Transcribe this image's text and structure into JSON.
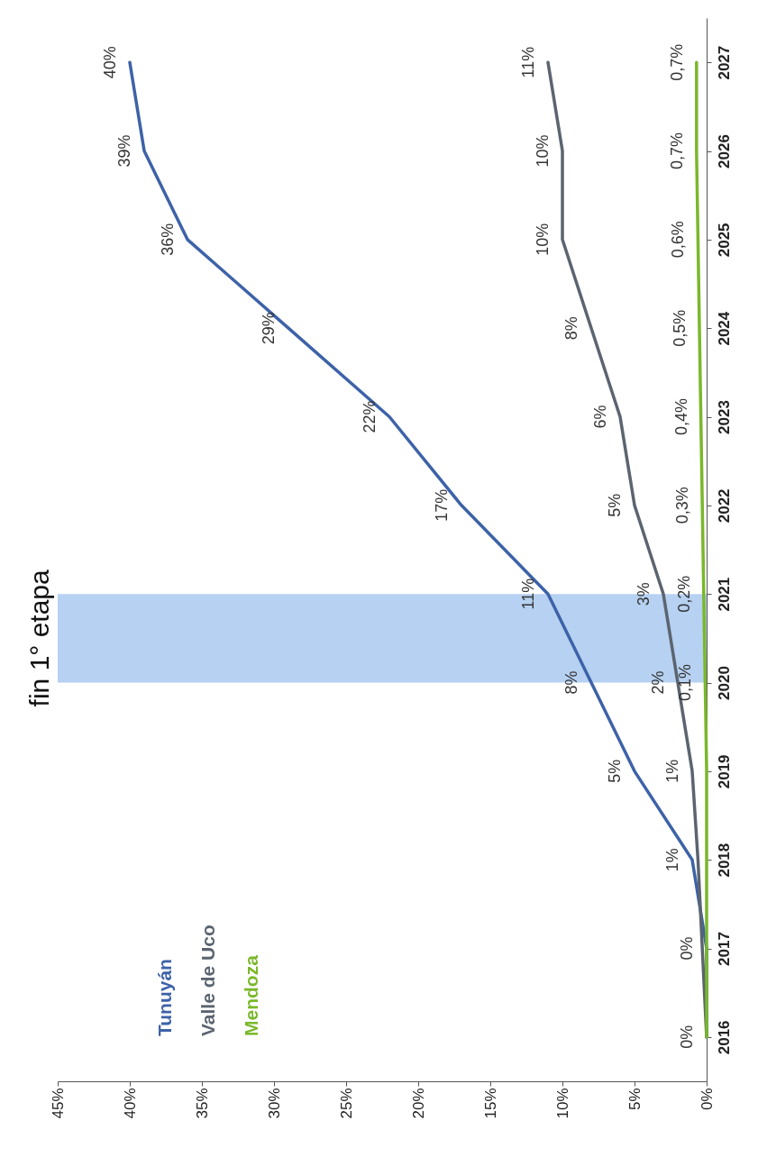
{
  "chart_data": {
    "type": "line",
    "orientation": "horizontal",
    "categories": [
      "2027",
      "2026",
      "2025",
      "2024",
      "2023",
      "2022",
      "2021",
      "2020",
      "2019",
      "2018",
      "2017",
      "2016"
    ],
    "xlim": [
      45,
      0
    ],
    "xticks": [
      {
        "value": 0,
        "label": "0%"
      },
      {
        "value": 5,
        "label": "5%"
      },
      {
        "value": 10,
        "label": "10%"
      },
      {
        "value": 15,
        "label": "15%"
      },
      {
        "value": 20,
        "label": "20%"
      },
      {
        "value": 25,
        "label": "25%"
      },
      {
        "value": 30,
        "label": "30%"
      },
      {
        "value": 35,
        "label": "35%"
      },
      {
        "value": 40,
        "label": "40%"
      },
      {
        "value": 45,
        "label": "45%"
      }
    ],
    "series": [
      {
        "name": "Tunuyán",
        "color": "#3d62a8",
        "values": [
          40,
          39,
          36,
          29,
          22,
          17,
          11,
          8,
          5,
          1,
          0,
          0
        ],
        "value_labels": [
          "40%",
          "39%",
          "36%",
          "29%",
          "22%",
          "17%",
          "11%",
          "8%",
          "5%",
          "1%",
          "0%",
          null
        ]
      },
      {
        "name": "Valle de Uco",
        "color": "#5b6470",
        "values": [
          11,
          10,
          10,
          8,
          6,
          5,
          3,
          2,
          1,
          0.6,
          0.3,
          0
        ],
        "value_labels": [
          "11%",
          "10%",
          "10%",
          "8%",
          "6%",
          "5%",
          "3%",
          "2%",
          "1%",
          null,
          null,
          "0%"
        ]
      },
      {
        "name": "Mendoza",
        "color": "#7ab82a",
        "values": [
          0.7,
          0.7,
          0.6,
          0.5,
          0.4,
          0.3,
          0.2,
          0.1,
          0,
          0,
          0,
          0
        ],
        "value_labels": [
          "0,7%",
          "0,7%",
          "0,6%",
          "0,5%",
          "0,4%",
          "0,3%",
          "0,2%",
          "0,1%",
          null,
          null,
          null,
          null
        ]
      }
    ],
    "bands": [
      {
        "axis": "y",
        "from": "2021",
        "to": "2020",
        "label": "fin 1° etapa",
        "color": "#a9c9ee"
      }
    ],
    "legend": "bottom left",
    "grid": false,
    "marker": "none",
    "line_style": "solid"
  }
}
